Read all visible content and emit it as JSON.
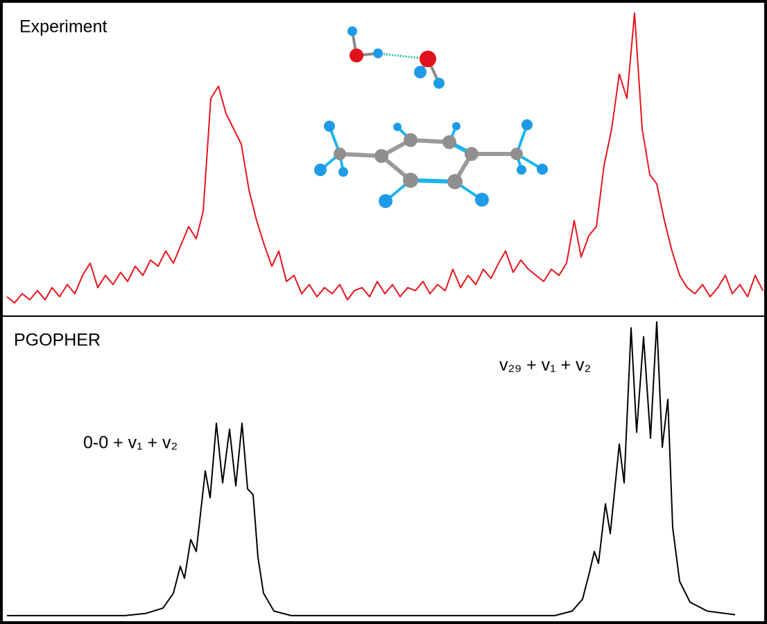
{
  "chart_data": [
    {
      "type": "line",
      "title": "Experiment",
      "color": "#e8141b",
      "xlim": [
        0,
        1090
      ],
      "ylim": [
        0,
        100
      ],
      "x": [
        0,
        11,
        22,
        33,
        44,
        55,
        65,
        76,
        87,
        98,
        109,
        120,
        131,
        142,
        153,
        164,
        174,
        185,
        196,
        207,
        218,
        229,
        240,
        251,
        262,
        273,
        283,
        294,
        305,
        316,
        327,
        338,
        349,
        360,
        371,
        382,
        392,
        403,
        414,
        425,
        436,
        447,
        458,
        469,
        480,
        491,
        501,
        512,
        523,
        534,
        545,
        556,
        567,
        578,
        589,
        600,
        610,
        621,
        632,
        643,
        654,
        665,
        676,
        687,
        698,
        709,
        719,
        730,
        741,
        752,
        763,
        774,
        785,
        796,
        807,
        818,
        828,
        839,
        850,
        861,
        872,
        883,
        894,
        905,
        916,
        927,
        937,
        948,
        959,
        970,
        981,
        992,
        1003,
        1014,
        1025,
        1036,
        1046,
        1057,
        1068,
        1079,
        1090
      ],
      "values": [
        5,
        3,
        6,
        4,
        7,
        4,
        8,
        5,
        9,
        6,
        12,
        16,
        8,
        12,
        9,
        13,
        10,
        15,
        12,
        17,
        15,
        20,
        16,
        22,
        28,
        24,
        33,
        70,
        74,
        65,
        60,
        55,
        40,
        30,
        22,
        15,
        20,
        10,
        12,
        6,
        9,
        5,
        8,
        6,
        9,
        4,
        7,
        8,
        5,
        10,
        6,
        9,
        5,
        8,
        7,
        10,
        6,
        9,
        7,
        14,
        8,
        12,
        9,
        14,
        11,
        16,
        20,
        13,
        17,
        14,
        12,
        10,
        14,
        12,
        16,
        30,
        18,
        25,
        28,
        48,
        60,
        78,
        70,
        98,
        60,
        45,
        42,
        30,
        20,
        12,
        8,
        6,
        9,
        5,
        8,
        12,
        6,
        9,
        5,
        12,
        7
      ]
    },
    {
      "type": "line",
      "title": "PGOPHER",
      "color": "#000000",
      "xlim": [
        0,
        1090
      ],
      "ylim": [
        0,
        100
      ],
      "annotations": [
        "0-0 + v₁ + v₂",
        "v₂₉ + v₁ + v₂"
      ],
      "x": [
        0,
        170,
        200,
        225,
        240,
        250,
        256,
        265,
        273,
        286,
        293,
        302,
        311,
        321,
        330,
        339,
        347,
        355,
        362,
        370,
        385,
        410,
        790,
        815,
        830,
        840,
        847,
        853,
        863,
        870,
        883,
        890,
        900,
        908,
        918,
        928,
        937,
        945,
        953,
        960,
        970,
        985,
        1010,
        1050
      ],
      "values": [
        0.5,
        0.5,
        1.2,
        3,
        8,
        17,
        13,
        26,
        22,
        49,
        40,
        65,
        45,
        63,
        44,
        65,
        43,
        41,
        20,
        8,
        2,
        0.5,
        0.5,
        2,
        6,
        15,
        22,
        18,
        38,
        28,
        58,
        45,
        97,
        62,
        94,
        60,
        99,
        57,
        73,
        30,
        12,
        5,
        2,
        0.8
      ]
    }
  ]
}
